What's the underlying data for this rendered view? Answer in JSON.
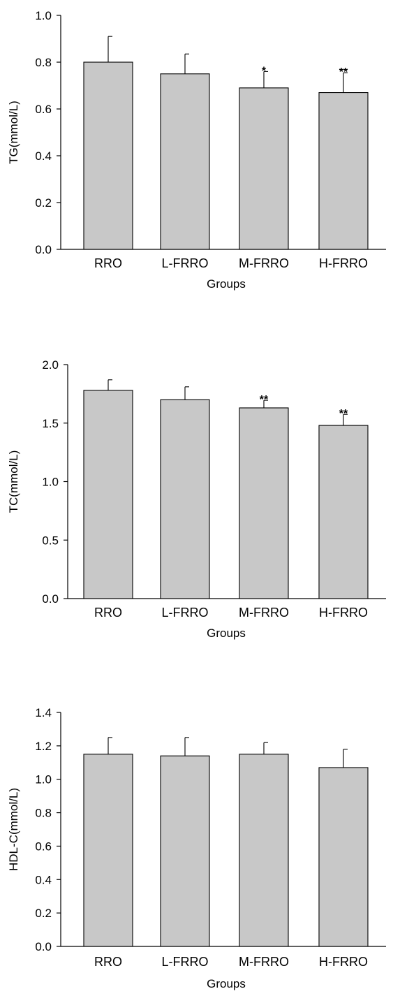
{
  "chart_data": [
    {
      "type": "bar",
      "categories": [
        "RRO",
        "L-FRRO",
        "M-FRRO",
        "H-FRRO"
      ],
      "values": [
        0.8,
        0.75,
        0.69,
        0.67
      ],
      "errors": [
        0.11,
        0.085,
        0.07,
        0.085
      ],
      "significance": [
        "",
        "",
        "*",
        "**"
      ],
      "xlabel": "Groups",
      "ylabel": "TG(mmol/L)",
      "ylim": [
        0.0,
        1.0
      ],
      "yticks": [
        "0.0",
        "0.2",
        "0.4",
        "0.6",
        "0.8",
        "1.0"
      ],
      "bar_color": "#c8c8c8",
      "grid": false
    },
    {
      "type": "bar",
      "categories": [
        "RRO",
        "L-FRRO",
        "M-FRRO",
        "H-FRRO"
      ],
      "values": [
        1.78,
        1.7,
        1.63,
        1.48
      ],
      "errors": [
        0.09,
        0.11,
        0.065,
        0.095
      ],
      "significance": [
        "",
        "",
        "**",
        "**"
      ],
      "xlabel": "Groups",
      "ylabel": "TC(mmol/L)",
      "ylim": [
        0.0,
        2.0
      ],
      "yticks": [
        "0.0",
        "0.5",
        "1.0",
        "1.5",
        "2.0"
      ],
      "bar_color": "#c8c8c8",
      "grid": false
    },
    {
      "type": "bar",
      "categories": [
        "RRO",
        "L-FRRO",
        "M-FRRO",
        "H-FRRO"
      ],
      "values": [
        1.15,
        1.14,
        1.15,
        1.07
      ],
      "errors": [
        0.1,
        0.11,
        0.07,
        0.11
      ],
      "significance": [
        "",
        "",
        "",
        ""
      ],
      "xlabel": "Groups",
      "ylabel": "HDL-C(mmol/L)",
      "ylim": [
        0.0,
        1.4
      ],
      "yticks": [
        "0.0",
        "0.2",
        "0.4",
        "0.6",
        "0.8",
        "1.0",
        "1.2",
        "1.4"
      ],
      "bar_color": "#c8c8c8",
      "grid": false
    }
  ]
}
